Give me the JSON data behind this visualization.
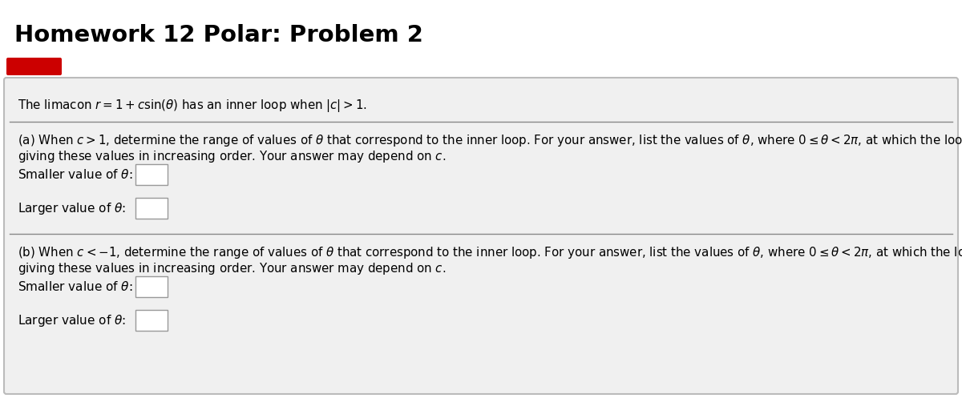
{
  "title": "Homework 12 Polar: Problem 2",
  "title_fontsize": 21,
  "title_fontweight": "bold",
  "bg_color": "#ffffff",
  "content_bg": "#f0f0f0",
  "border_color": "#bbbbbb",
  "text_color": "#000000",
  "input_box_color": "#ffffff",
  "input_box_edge": "#999999",
  "red_color": "#cc0000",
  "divider_color": "#888888",
  "intro_text": "The limacon $r = 1 + c\\sin(\\theta)$ has an inner loop when $|c| > 1$.",
  "part_a_line1": "(a) When $c > 1$, determine the range of values of $\\theta$ that correspond to the inner loop. For your answer, list the values of $\\theta$, where $0 \\leq \\theta < 2\\pi$, at which the loop begins and ends,",
  "part_a_line2": "giving these values in increasing order. Your answer may depend on $c$.",
  "smaller_a": "Smaller value of $\\theta$:",
  "larger_a": "Larger value of $\\theta$:",
  "part_b_line1": "(b) When $c < -1$, determine the range of values of $\\theta$ that correspond to the inner loop. For your answer, list the values of $\\theta$, where $0 \\leq \\theta < 2\\pi$, at which the loop begins and ends,",
  "part_b_line2": "giving these values in increasing order. Your answer may depend on $c$.",
  "smaller_b": "Smaller value of $\\theta$:",
  "larger_b": "Larger value of $\\theta$:",
  "label_fontsize": 11,
  "body_fontsize": 10.8
}
